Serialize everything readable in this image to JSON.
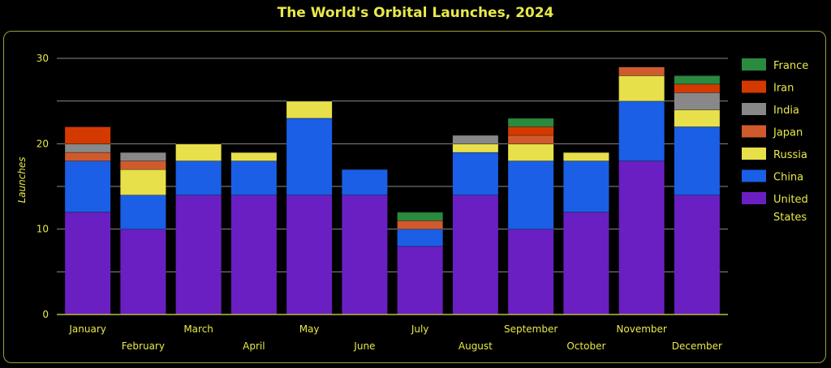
{
  "chart_data": {
    "type": "bar",
    "stacked": true,
    "title": "The World's Orbital Launches, 2024",
    "ylabel": "Launches",
    "xlabel": "",
    "ylim": [
      0,
      30
    ],
    "yticks": [
      0,
      10,
      20,
      30
    ],
    "grid": true,
    "legend_position": "right",
    "categories": [
      "January",
      "February",
      "March",
      "April",
      "May",
      "June",
      "July",
      "August",
      "September",
      "October",
      "November",
      "December"
    ],
    "series": [
      {
        "name": "United States",
        "color": "#6a1fc2",
        "values": [
          12,
          10,
          14,
          14,
          14,
          14,
          8,
          14,
          10,
          12,
          18,
          14
        ]
      },
      {
        "name": "China",
        "color": "#1a5fe6",
        "values": [
          6,
          4,
          4,
          4,
          9,
          3,
          2,
          5,
          8,
          6,
          7,
          8
        ]
      },
      {
        "name": "Russia",
        "color": "#e8e04a",
        "values": [
          0,
          3,
          2,
          1,
          2,
          0,
          0,
          1,
          2,
          1,
          3,
          2
        ]
      },
      {
        "name": "Japan",
        "color": "#d15a2c",
        "values": [
          1,
          1,
          0,
          0,
          0,
          0,
          1,
          0,
          1,
          0,
          1,
          0
        ]
      },
      {
        "name": "India",
        "color": "#888888",
        "values": [
          1,
          1,
          0,
          0,
          0,
          0,
          0,
          1,
          0,
          0,
          0,
          2
        ]
      },
      {
        "name": "Iran",
        "color": "#d43a00",
        "values": [
          2,
          0,
          0,
          0,
          0,
          0,
          0,
          0,
          1,
          0,
          0,
          1
        ]
      },
      {
        "name": "France",
        "color": "#2a8a3e",
        "values": [
          0,
          0,
          0,
          0,
          0,
          0,
          1,
          0,
          1,
          0,
          0,
          1
        ]
      }
    ]
  }
}
